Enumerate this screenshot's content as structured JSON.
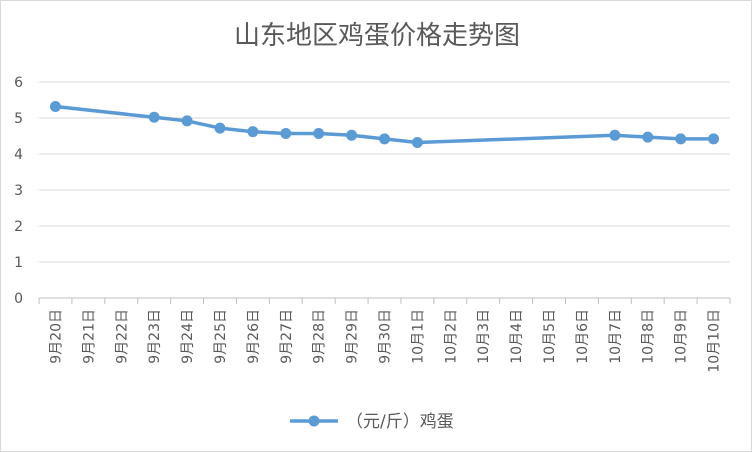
{
  "chart_data": {
    "type": "line",
    "title": "山东地区鸡蛋价格走势图",
    "xlabel": "",
    "ylabel": "",
    "ylim": [
      0,
      6
    ],
    "yticks": [
      0,
      1,
      2,
      3,
      4,
      5,
      6
    ],
    "categories": [
      "9月20日",
      "9月21日",
      "9月22日",
      "9月23日",
      "9月24日",
      "9月25日",
      "9月26日",
      "9月27日",
      "9月28日",
      "9月29日",
      "9月30日",
      "10月1日",
      "10月2日",
      "10月3日",
      "10月4日",
      "10月5日",
      "10月6日",
      "10月7日",
      "10月8日",
      "10月9日",
      "10月10日"
    ],
    "series": [
      {
        "name": "（元/斤）鸡蛋",
        "values": [
          5.32,
          null,
          null,
          5.02,
          4.92,
          4.72,
          4.62,
          4.57,
          4.57,
          4.52,
          4.42,
          4.32,
          null,
          null,
          null,
          null,
          null,
          4.52,
          4.47,
          4.42,
          4.42
        ],
        "color": "#5b9bd5"
      }
    ],
    "grid": true,
    "legend": "bottom"
  }
}
